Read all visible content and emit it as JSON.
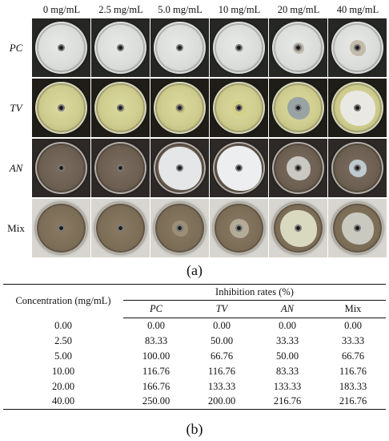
{
  "figure": {
    "column_headers": [
      "0 mg/mL",
      "2.5 mg/mL",
      "5.0 mg/mL",
      "10 mg/mL",
      "20 mg/mL",
      "40 mg/mL"
    ],
    "rows": [
      {
        "label": "PC",
        "italic": true,
        "style": "pc"
      },
      {
        "label": "TV",
        "italic": true,
        "style": "tv"
      },
      {
        "label": "AN",
        "italic": true,
        "style": "an"
      },
      {
        "label": "Mix",
        "italic": false,
        "style": "mix"
      }
    ],
    "panel_label": "(a)"
  },
  "table": {
    "concentration_header": "Concentration (mg/mL)",
    "group_header": "Inhibition rates (%)",
    "columns": [
      "PC",
      "TV",
      "AN",
      "Mix"
    ],
    "column_italic": [
      true,
      true,
      true,
      false
    ],
    "rows": [
      {
        "concentration": "0.00",
        "values": [
          "0.00",
          "0.00",
          "0.00",
          "0.00"
        ]
      },
      {
        "concentration": "2.50",
        "values": [
          "83.33",
          "50.00",
          "33.33",
          "33.33"
        ]
      },
      {
        "concentration": "5.00",
        "values": [
          "100.00",
          "66.76",
          "50.00",
          "66.76"
        ]
      },
      {
        "concentration": "10.00",
        "values": [
          "116.76",
          "116.76",
          "83.33",
          "116.76"
        ]
      },
      {
        "concentration": "20.00",
        "values": [
          "166.76",
          "133.33",
          "133.33",
          "183.33"
        ]
      },
      {
        "concentration": "40.00",
        "values": [
          "250.00",
          "200.00",
          "216.76",
          "216.76"
        ]
      }
    ],
    "panel_label": "(b)"
  }
}
